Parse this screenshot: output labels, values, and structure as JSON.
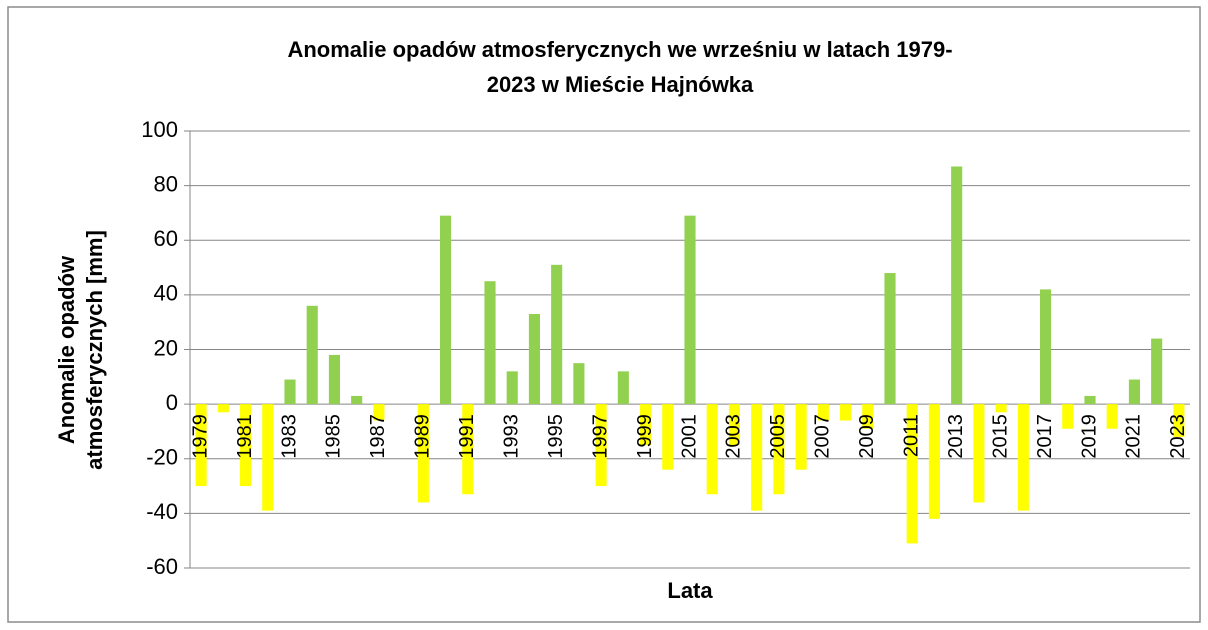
{
  "chart_data": {
    "type": "bar",
    "title": [
      "Anomalie opadów atmosferycznych we wrześniu w latach 1979-",
      "2023 w Mieście Hajnówka"
    ],
    "xlabel": "Lata",
    "ylabel": [
      "Anomalie opadów",
      "atmosferycznych [mm]"
    ],
    "categories": [
      "1979",
      null,
      "1981",
      null,
      "1983",
      null,
      "1985",
      null,
      "1987",
      null,
      "1989",
      null,
      "1991",
      null,
      "1993",
      null,
      "1995",
      null,
      "1997",
      null,
      "1999",
      null,
      "2001",
      null,
      "2003",
      null,
      "2005",
      null,
      "2007",
      null,
      "2009",
      null,
      "2011",
      null,
      "2013",
      null,
      "2015",
      null,
      "2017",
      null,
      "2019",
      null,
      "2021",
      null,
      "2023"
    ],
    "values": [
      -30,
      -3,
      -30,
      -39,
      9,
      36,
      18,
      3,
      -6,
      0,
      -36,
      69,
      -33,
      45,
      12,
      33,
      51,
      15,
      -30,
      12,
      -15,
      -24,
      69,
      -33,
      -15,
      -39,
      -33,
      -24,
      -6,
      -6,
      -9,
      48,
      -51,
      -42,
      87,
      -36,
      -3,
      -39,
      42,
      -9,
      3,
      -9,
      9,
      24,
      -12
    ],
    "colors": {
      "positive": "#92d050",
      "negative": "#ffff00"
    },
    "ylim": [
      -60,
      100
    ],
    "yticks": [
      -60,
      -40,
      -20,
      0,
      20,
      40,
      60,
      80,
      100
    ],
    "grid": true
  }
}
